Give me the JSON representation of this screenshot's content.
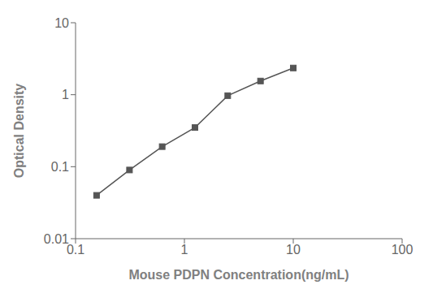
{
  "chart_data": {
    "type": "line",
    "x": [
      0.156,
      0.313,
      0.625,
      1.25,
      2.5,
      5.0,
      10.0
    ],
    "values": [
      0.04,
      0.09,
      0.19,
      0.35,
      0.97,
      1.55,
      2.35
    ],
    "xlabel": "Mouse PDPN Concentration(ng/mL)",
    "ylabel": "Optical Density",
    "log": true,
    "xlim": [
      0.1,
      100
    ],
    "ylim": [
      0.01,
      10
    ],
    "xticks": [
      0.1,
      1,
      10,
      100
    ],
    "yticks": [
      0.01,
      0.1,
      1,
      10
    ],
    "color": "#555555",
    "marker": "square",
    "grid": false
  }
}
